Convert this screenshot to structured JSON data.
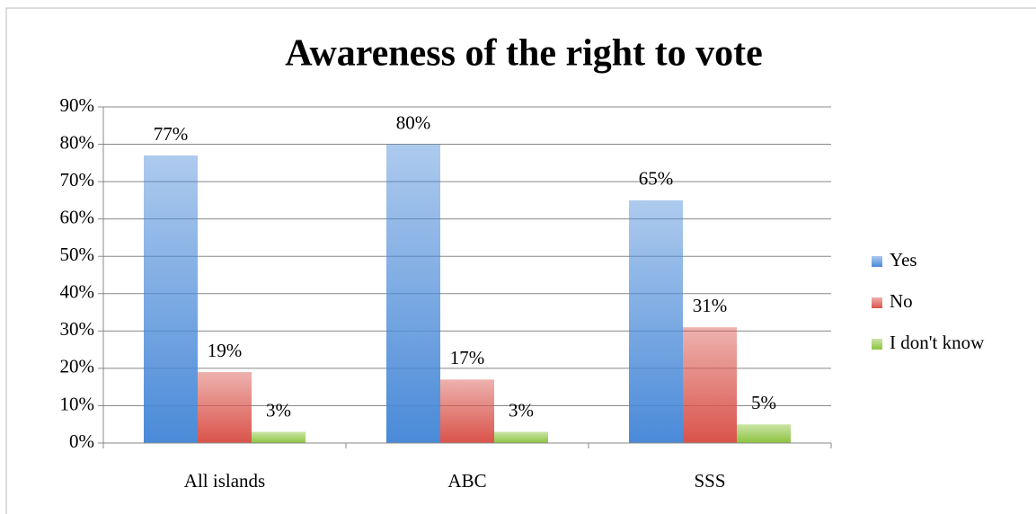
{
  "chart_data": {
    "type": "bar",
    "title": "Awareness of the right to vote",
    "categories": [
      "All islands",
      "ABC",
      "SSS"
    ],
    "series": [
      {
        "name": "Yes",
        "color": "#4a8ad8",
        "values": [
          77,
          80,
          65
        ],
        "value_labels": [
          "77%",
          "80%",
          "65%"
        ]
      },
      {
        "name": "No",
        "color": "#d9534a",
        "values": [
          19,
          17,
          31
        ],
        "value_labels": [
          "19%",
          "17%",
          "31%"
        ]
      },
      {
        "name": "I don't know",
        "color": "#8cc43e",
        "values": [
          3,
          3,
          5
        ],
        "value_labels": [
          "3%",
          "3%",
          "5%"
        ]
      }
    ],
    "ylim": [
      0,
      90
    ],
    "yticks": [
      {
        "value": 0,
        "label": "0%"
      },
      {
        "value": 10,
        "label": "10%"
      },
      {
        "value": 20,
        "label": "20%"
      },
      {
        "value": 30,
        "label": "30%"
      },
      {
        "value": 40,
        "label": "40%"
      },
      {
        "value": 50,
        "label": "50%"
      },
      {
        "value": 60,
        "label": "60%"
      },
      {
        "value": 70,
        "label": "70%"
      },
      {
        "value": 80,
        "label": "80%"
      },
      {
        "value": 90,
        "label": "90%"
      }
    ],
    "grid": true,
    "legend": "right"
  }
}
